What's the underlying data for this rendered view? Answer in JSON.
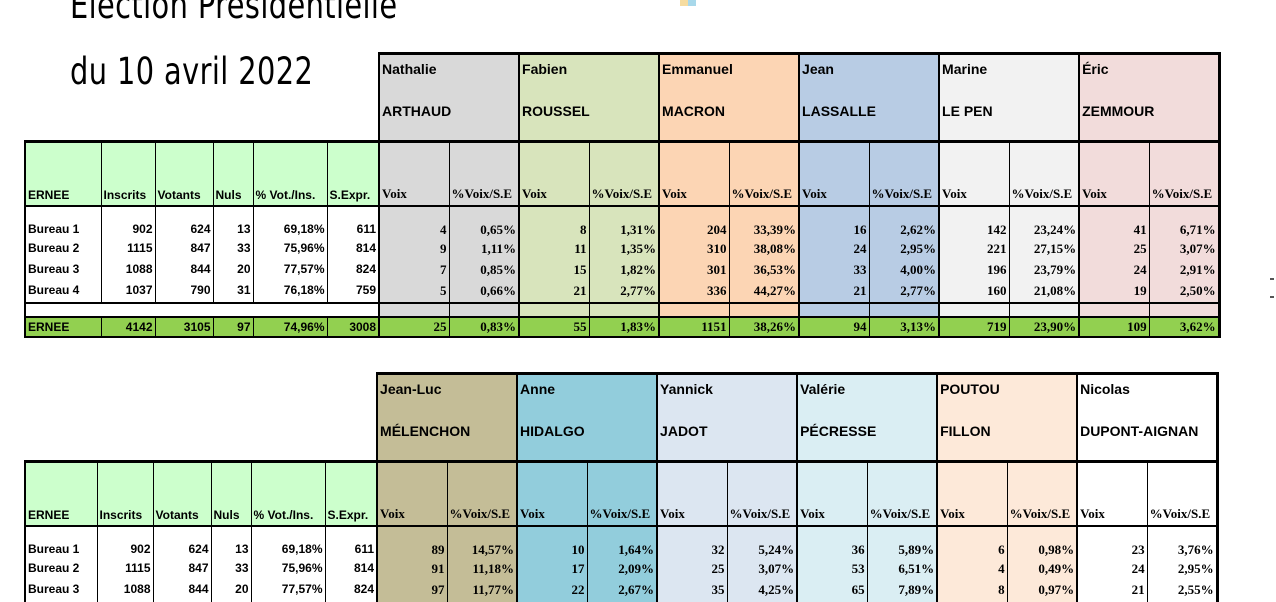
{
  "title": {
    "line1": "Election Présidentielle",
    "line2": "du 10 avril 2022"
  },
  "headers": {
    "commune": "ERNEE",
    "inscrits": "Inscrits",
    "votants": "Votants",
    "nuls": "Nuls",
    "pct_vot": "% Vot./Ins.",
    "sexpr": "S.Expr.",
    "voix": "Voix",
    "pct_voix": "%Voix/S.E"
  },
  "colors": {
    "green_header": "#ccffcc",
    "total_row": "#92d050"
  },
  "table1": {
    "candidates": [
      {
        "first": "Nathalie",
        "last": "ARTHAUD",
        "color": "#d9d9d9"
      },
      {
        "first": "Fabien",
        "last": "ROUSSEL",
        "color": "#d8e4bc"
      },
      {
        "first": "Emmanuel",
        "last": "MACRON",
        "color": "#fcd5b4"
      },
      {
        "first": "Jean",
        "last": "LASSALLE",
        "color": "#b8cce4"
      },
      {
        "first": "Marine",
        "last": "LE PEN",
        "color": "#f2f2f2"
      },
      {
        "first": "Éric",
        "last": "ZEMMOUR",
        "color": "#f2dcdb"
      }
    ],
    "rows": [
      {
        "name": "Bureau 1",
        "inscrits": "902",
        "votants": "624",
        "nuls": "13",
        "pct": "69,18%",
        "sexpr": "611",
        "votes": [
          [
            "4",
            "0,65%"
          ],
          [
            "8",
            "1,31%"
          ],
          [
            "204",
            "33,39%"
          ],
          [
            "16",
            "2,62%"
          ],
          [
            "142",
            "23,24%"
          ],
          [
            "41",
            "6,71%"
          ]
        ]
      },
      {
        "name": "Bureau 2",
        "inscrits": "1115",
        "votants": "847",
        "nuls": "33",
        "pct": "75,96%",
        "sexpr": "814",
        "votes": [
          [
            "9",
            "1,11%"
          ],
          [
            "11",
            "1,35%"
          ],
          [
            "310",
            "38,08%"
          ],
          [
            "24",
            "2,95%"
          ],
          [
            "221",
            "27,15%"
          ],
          [
            "25",
            "3,07%"
          ]
        ]
      },
      {
        "name": "Bureau 3",
        "inscrits": "1088",
        "votants": "844",
        "nuls": "20",
        "pct": "77,57%",
        "sexpr": "824",
        "votes": [
          [
            "7",
            "0,85%"
          ],
          [
            "15",
            "1,82%"
          ],
          [
            "301",
            "36,53%"
          ],
          [
            "33",
            "4,00%"
          ],
          [
            "196",
            "23,79%"
          ],
          [
            "24",
            "2,91%"
          ]
        ]
      },
      {
        "name": "Bureau 4",
        "inscrits": "1037",
        "votants": "790",
        "nuls": "31",
        "pct": "76,18%",
        "sexpr": "759",
        "votes": [
          [
            "5",
            "0,66%"
          ],
          [
            "21",
            "2,77%"
          ],
          [
            "336",
            "44,27%"
          ],
          [
            "21",
            "2,77%"
          ],
          [
            "160",
            "21,08%"
          ],
          [
            "19",
            "2,50%"
          ]
        ]
      }
    ],
    "total": {
      "name": "ERNEE",
      "inscrits": "4142",
      "votants": "3105",
      "nuls": "97",
      "pct": "74,96%",
      "sexpr": "3008",
      "votes": [
        [
          "25",
          "0,83%"
        ],
        [
          "55",
          "1,83%"
        ],
        [
          "1151",
          "38,26%"
        ],
        [
          "94",
          "3,13%"
        ],
        [
          "719",
          "23,90%"
        ],
        [
          "109",
          "3,62%"
        ]
      ]
    }
  },
  "table2": {
    "candidates": [
      {
        "first": "Jean-Luc",
        "last": "MÉLENCHON",
        "color": "#c4bd97"
      },
      {
        "first": "Anne",
        "last": "HIDALGO",
        "color": "#92cddc"
      },
      {
        "first": "Yannick",
        "last": "JADOT",
        "color": "#dce6f1"
      },
      {
        "first": "Valérie",
        "last": "PÉCRESSE",
        "color": "#daeef3"
      },
      {
        "first": "POUTOU",
        "last": "FILLON",
        "color": "#fde9d9"
      },
      {
        "first": "Nicolas",
        "last": "DUPONT-AIGNAN",
        "color": "#ffffff"
      }
    ],
    "rows": [
      {
        "name": "Bureau 1",
        "inscrits": "902",
        "votants": "624",
        "nuls": "13",
        "pct": "69,18%",
        "sexpr": "611",
        "votes": [
          [
            "89",
            "14,57%"
          ],
          [
            "10",
            "1,64%"
          ],
          [
            "32",
            "5,24%"
          ],
          [
            "36",
            "5,89%"
          ],
          [
            "6",
            "0,98%"
          ],
          [
            "23",
            "3,76%"
          ]
        ]
      },
      {
        "name": "Bureau 2",
        "inscrits": "1115",
        "votants": "847",
        "nuls": "33",
        "pct": "75,96%",
        "sexpr": "814",
        "votes": [
          [
            "91",
            "11,18%"
          ],
          [
            "17",
            "2,09%"
          ],
          [
            "25",
            "3,07%"
          ],
          [
            "53",
            "6,51%"
          ],
          [
            "4",
            "0,49%"
          ],
          [
            "24",
            "2,95%"
          ]
        ]
      },
      {
        "name": "Bureau 3",
        "inscrits": "1088",
        "votants": "844",
        "nuls": "20",
        "pct": "77,57%",
        "sexpr": "824",
        "votes": [
          [
            "97",
            "11,77%"
          ],
          [
            "22",
            "2,67%"
          ],
          [
            "35",
            "4,25%"
          ],
          [
            "65",
            "7,89%"
          ],
          [
            "8",
            "0,97%"
          ],
          [
            "21",
            "2,55%"
          ]
        ]
      }
    ]
  }
}
